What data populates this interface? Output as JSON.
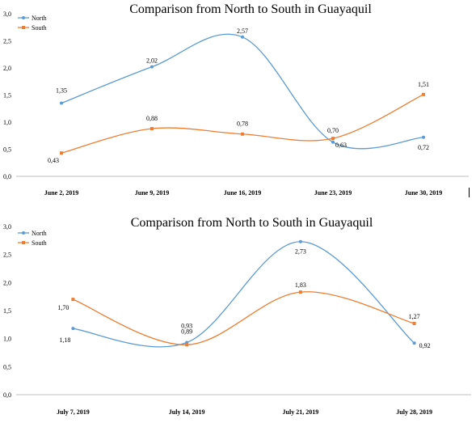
{
  "chart_data": [
    {
      "type": "line",
      "title": "Comparison from North to South in Guayaquil",
      "categories": [
        "June 2, 2019",
        "June 9, 2019",
        "June 16, 2019",
        "June 23, 2019",
        "June 30, 2019"
      ],
      "series": [
        {
          "name": "North",
          "color": "#5b9bd5",
          "values": [
            1.35,
            2.02,
            2.57,
            0.63,
            0.72
          ],
          "labels": [
            "1,35",
            "2,02",
            "2,57",
            "0,63",
            "0,72"
          ]
        },
        {
          "name": "South",
          "color": "#ed7d31",
          "values": [
            0.43,
            0.88,
            0.78,
            0.7,
            1.51
          ],
          "labels": [
            "0,43",
            "0,88",
            "0,78",
            "0,70",
            "1,51"
          ]
        }
      ],
      "y_ticks": [
        "0,0",
        "0,5",
        "1,0",
        "1,5",
        "2,0",
        "2,5",
        "3,0"
      ],
      "ylim": [
        0,
        3
      ],
      "legend": "top-left",
      "grid": false
    },
    {
      "type": "line",
      "title": "Comparison from North to South in Guayaquil",
      "categories": [
        "July 7, 2019",
        "July 14, 2019",
        "July 21, 2019",
        "July 28, 2019"
      ],
      "series": [
        {
          "name": "North",
          "color": "#5b9bd5",
          "values": [
            1.18,
            0.93,
            2.73,
            0.92
          ],
          "labels": [
            "1,18",
            "0,93",
            "2,73",
            "0,92"
          ]
        },
        {
          "name": "South",
          "color": "#ed7d31",
          "values": [
            1.7,
            0.89,
            1.83,
            1.27
          ],
          "labels": [
            "1,70",
            "0,89",
            "1,83",
            "1,27"
          ]
        }
      ],
      "y_ticks": [
        "0,0",
        "0,5",
        "1,0",
        "1,5",
        "2,0",
        "2,5",
        "3,0"
      ],
      "ylim": [
        0,
        3
      ],
      "legend": "top-left",
      "grid": false
    }
  ]
}
